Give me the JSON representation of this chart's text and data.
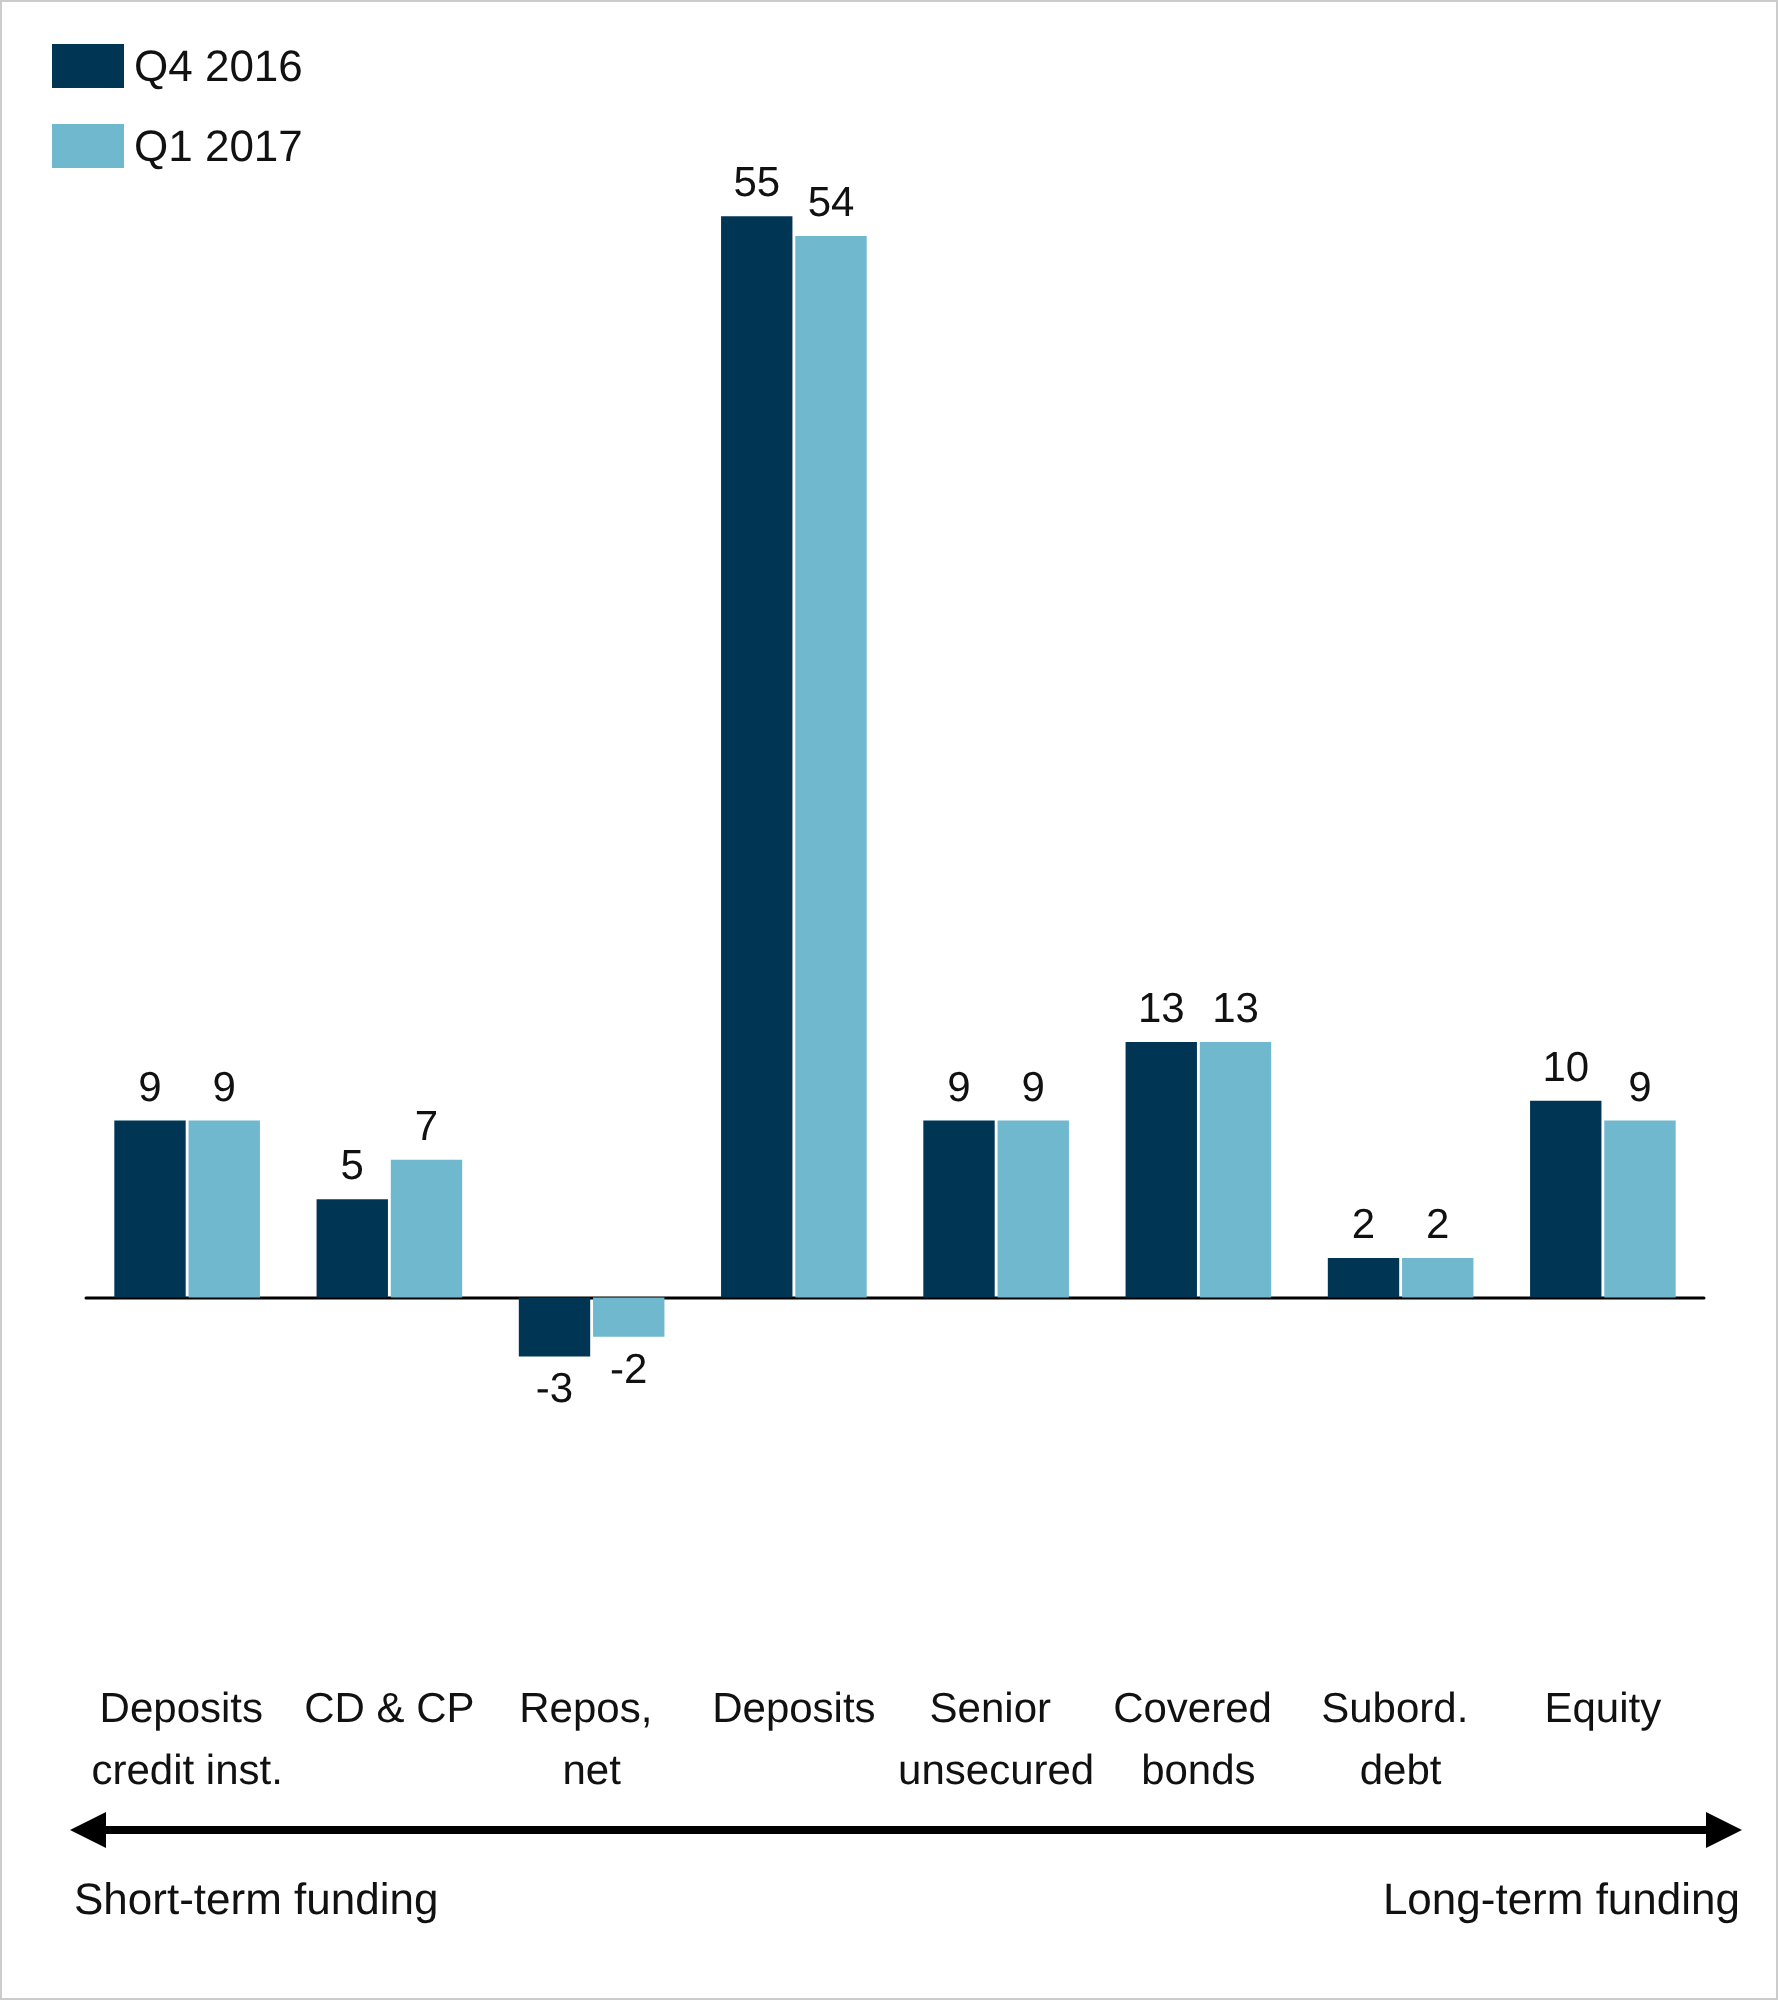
{
  "chart_data": {
    "type": "bar",
    "categories": [
      "Deposits credit inst.",
      "CD & CP",
      "Repos, net",
      "Deposits",
      "Senior unsecured",
      "Covered bonds",
      "Subord. debt",
      "Equity"
    ],
    "series": [
      {
        "name": "Q4 2016",
        "color": "#003654",
        "values": [
          9,
          5,
          -3,
          55,
          9,
          13,
          2,
          10
        ]
      },
      {
        "name": "Q1 2017",
        "color": "#6fb8ce",
        "values": [
          9,
          7,
          -2,
          54,
          9,
          13,
          2,
          9
        ]
      }
    ],
    "data_labels": true,
    "legend": "top left",
    "grid": false,
    "tick_labels": "x",
    "annotations": [
      "Short-term funding",
      "Long-term funding"
    ]
  }
}
